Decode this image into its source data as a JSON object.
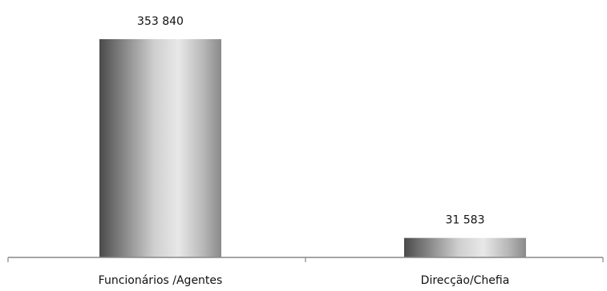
{
  "chart_data": {
    "type": "bar",
    "categories": [
      "Funcionários /Agentes",
      "Direcção/Chefia"
    ],
    "values": [
      353840,
      31583
    ],
    "value_labels": [
      "353 840",
      "31 583"
    ],
    "ylim": [
      0,
      353840
    ],
    "grid": false,
    "legend": "none",
    "colors": {
      "bar_dark": "#4a4a4a",
      "bar_light": "#e6e6e6",
      "axis": "#888888",
      "text": "#111111"
    }
  }
}
